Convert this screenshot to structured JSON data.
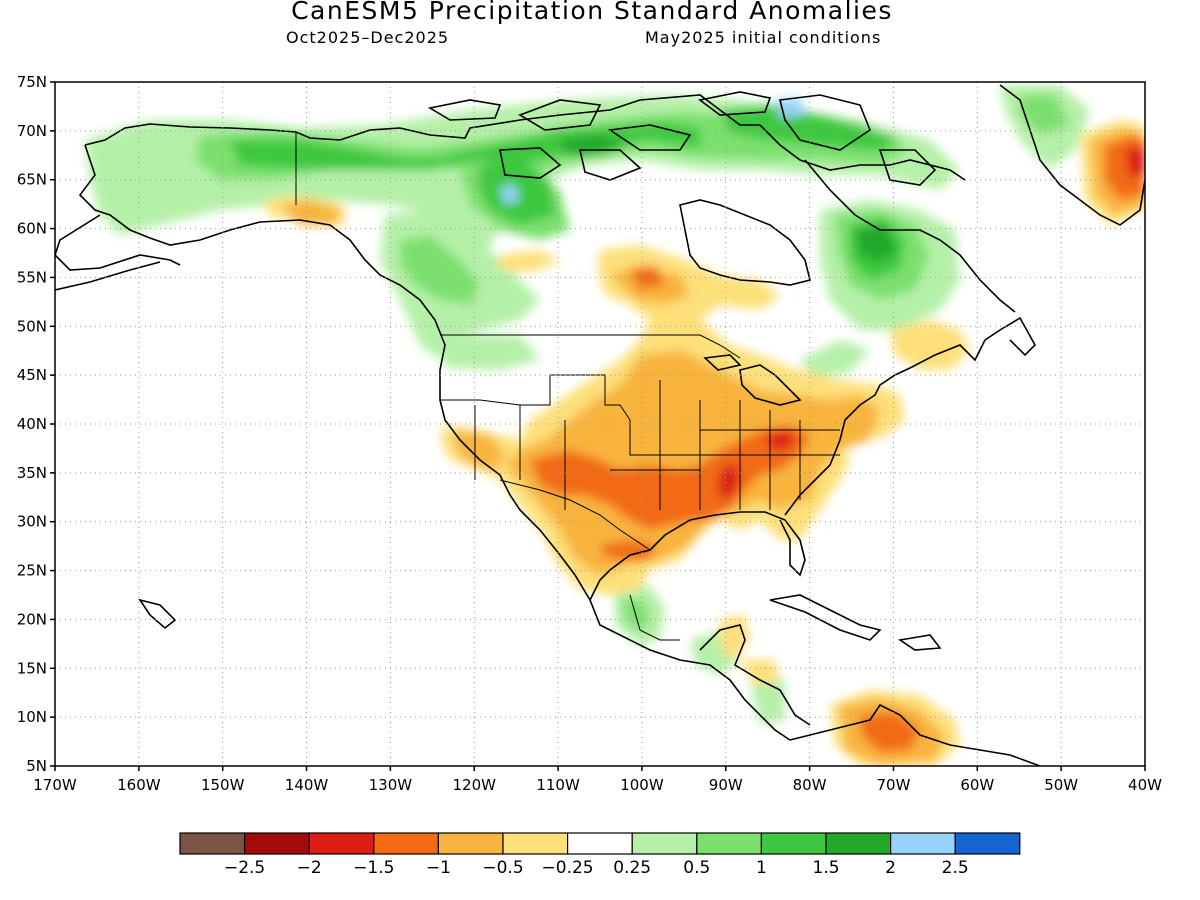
{
  "title": "CanESM5 Precipitation Standard Anomalies",
  "subtitle_left": "Oct2025–Dec2025",
  "subtitle_right": "May2025 initial conditions",
  "map": {
    "lon_range": [
      -170,
      -40
    ],
    "lat_range": [
      5,
      75
    ],
    "lat_ticks": [
      "75N",
      "70N",
      "65N",
      "60N",
      "55N",
      "50N",
      "45N",
      "40N",
      "35N",
      "30N",
      "25N",
      "20N",
      "15N",
      "10N",
      "5N"
    ],
    "lon_ticks": [
      "170W",
      "160W",
      "150W",
      "140W",
      "130W",
      "120W",
      "110W",
      "100W",
      "90W",
      "80W",
      "70W",
      "60W",
      "50W",
      "40W"
    ],
    "grid": true
  },
  "colorbar": {
    "colors": [
      "#7b5446",
      "#a50a0a",
      "#dc1e14",
      "#f26a14",
      "#f8b43c",
      "#fde07a",
      "#ffffff",
      "#b5f0a8",
      "#7be06e",
      "#3dc840",
      "#22a82a",
      "#96d2fa",
      "#1464d2"
    ],
    "labels": [
      "−2.5",
      "−2",
      "−1.5",
      "−1",
      "−0.5",
      "−0.25",
      "0.25",
      "0.5",
      "1",
      "1.5",
      "2",
      "2.5"
    ]
  }
}
